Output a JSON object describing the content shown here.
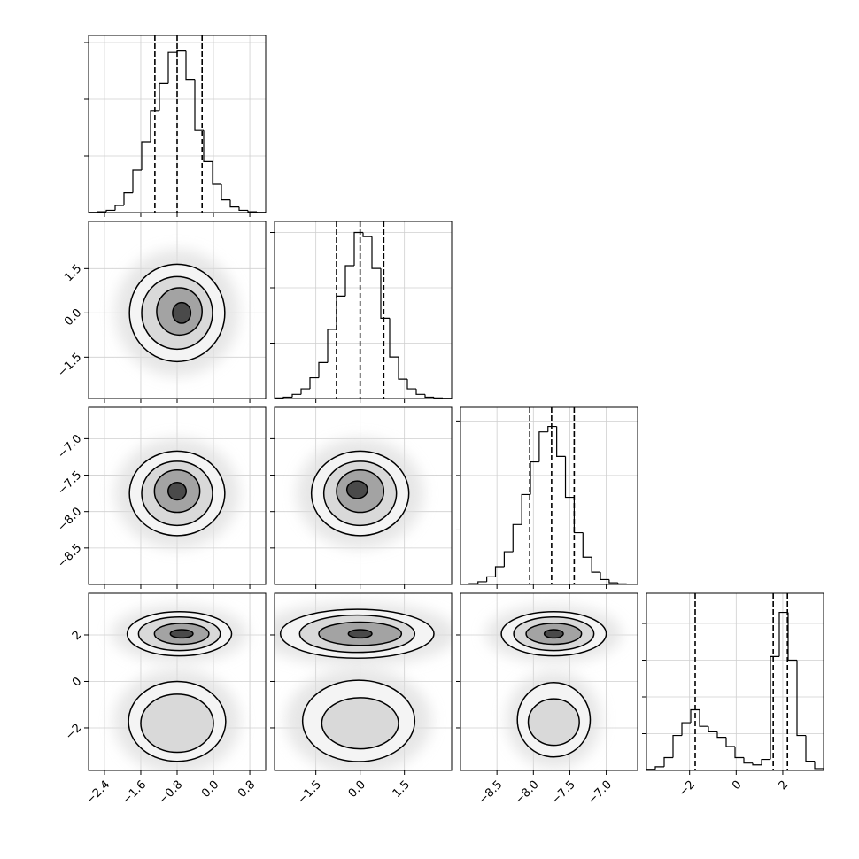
{
  "chart_data": [
    {
      "type": "histogram",
      "bins": [
        -2.75,
        -2.555,
        -2.36,
        -2.165,
        -1.97,
        -1.775,
        -1.58,
        -1.385,
        -1.19,
        -0.995,
        -0.8,
        -0.605,
        -0.41,
        -0.215,
        -0.02,
        0.175,
        0.37,
        0.565,
        0.76,
        0.955,
        1.15
      ],
      "values": [
        1,
        3,
        8,
        25,
        70,
        150,
        250,
        360,
        455,
        565,
        570,
        470,
        290,
        180,
        100,
        45,
        20,
        8,
        3,
        1
      ],
      "quantiles": [
        -1.29,
        -0.8,
        -0.25
      ],
      "color": "#000000",
      "xlim": [
        -2.75,
        1.15
      ],
      "xticks": [
        {
          "value": -2.4,
          "label": "−2.4"
        },
        {
          "value": -1.6,
          "label": "−1.6"
        },
        {
          "value": -0.8,
          "label": "−0.8"
        },
        {
          "value": 0,
          "label": "0.0"
        },
        0.8
      ],
      "ylim": [
        0,
        625
      ],
      "yticks": [
        200,
        400,
        600
      ],
      "grid": true
    },
    {
      "type": "hist2d",
      "xlim": [
        -2.75,
        1.15
      ],
      "ylim": [
        -2.9,
        3.1
      ],
      "xticks": [
        {
          "value": -2.4,
          "label": "−2.4"
        },
        {
          "value": -1.6,
          "label": "−1.6"
        },
        {
          "value": -0.8,
          "label": "−0.8"
        },
        {
          "value": 0,
          "label": "0.0"
        },
        0.8
      ],
      "yticks": [
        {
          "value": -1.5,
          "label": "−1.5"
        },
        {
          "value": 0,
          "label": "0.0"
        },
        1.5
      ],
      "ylabels": true,
      "grid": true,
      "fill_colors": [
        "#f4f4f4",
        "#d9d9d9",
        "#a3a3a3",
        "#4a4a4a"
      ],
      "line_color": "#000000",
      "contours": [
        [
          {
            "cx": -0.8,
            "cy": 0,
            "rx": 1.05,
            "ry": 1.65
          },
          {
            "cx": -0.8,
            "cy": 0,
            "rx": 0.78,
            "ry": 1.23
          },
          {
            "cx": -0.75,
            "cy": 0.05,
            "rx": 0.5,
            "ry": 0.8
          },
          {
            "cx": -0.7,
            "cy": 0,
            "rx": 0.2,
            "ry": 0.35
          }
        ]
      ]
    },
    {
      "type": "histogram",
      "bins": [
        -2.9,
        -2.6,
        -2.3,
        -2.0,
        -1.7,
        -1.4,
        -1.1,
        -0.8,
        -0.5,
        -0.2,
        0.1,
        0.4,
        0.7,
        1.0,
        1.3,
        1.6,
        1.9,
        2.2,
        2.5,
        2.8,
        3.1
      ],
      "values": [
        2,
        5,
        15,
        35,
        75,
        130,
        250,
        370,
        480,
        600,
        585,
        470,
        290,
        150,
        70,
        35,
        15,
        5,
        2,
        1
      ],
      "quantiles": [
        -0.8,
        0.0,
        0.8
      ],
      "color": "#000000",
      "xlim": [
        -2.9,
        3.1
      ],
      "xticks": [
        {
          "value": -1.5,
          "label": "−1.5"
        },
        {
          "value": 0,
          "label": "0.0"
        },
        1.5
      ],
      "ylim": [
        0,
        640
      ],
      "yticks": [
        200,
        400,
        600
      ],
      "grid": true
    },
    {
      "type": "hist2d",
      "xlim": [
        -2.75,
        1.15
      ],
      "ylim": [
        -9.0,
        -6.57
      ],
      "xticks": [
        {
          "value": -2.4,
          "label": "−2.4"
        },
        {
          "value": -1.6,
          "label": "−1.6"
        },
        {
          "value": -0.8,
          "label": "−0.8"
        },
        {
          "value": 0,
          "label": "0.0"
        },
        0.8
      ],
      "yticks": [
        {
          "value": -8.5,
          "label": "−8.5"
        },
        {
          "value": -8,
          "label": "−8.0"
        },
        {
          "value": -7.5,
          "label": "−7.5"
        },
        {
          "value": -7,
          "label": "−7.0"
        }
      ],
      "ylabels": true,
      "grid": true,
      "fill_colors": [
        "#f4f4f4",
        "#d9d9d9",
        "#a3a3a3",
        "#4a4a4a"
      ],
      "line_color": "#000000",
      "contours": [
        [
          {
            "cx": -0.8,
            "cy": -7.75,
            "rx": 1.05,
            "ry": 0.58
          },
          {
            "cx": -0.8,
            "cy": -7.75,
            "rx": 0.78,
            "ry": 0.44
          },
          {
            "cx": -0.8,
            "cy": -7.72,
            "rx": 0.5,
            "ry": 0.29
          },
          {
            "cx": -0.8,
            "cy": -7.72,
            "rx": 0.2,
            "ry": 0.12
          }
        ]
      ]
    },
    {
      "type": "hist2d",
      "xlim": [
        -2.9,
        3.1
      ],
      "ylim": [
        -9.0,
        -6.57
      ],
      "xticks": [
        {
          "value": -1.5,
          "label": "−1.5"
        },
        {
          "value": 0,
          "label": "0.0"
        },
        1.5
      ],
      "yticks": [
        {
          "value": -8.5,
          "label": "−8.5"
        },
        {
          "value": -8,
          "label": "−8.0"
        },
        {
          "value": -7.5,
          "label": "−7.5"
        },
        {
          "value": -7,
          "label": "−7.0"
        }
      ],
      "grid": true,
      "fill_colors": [
        "#f4f4f4",
        "#d9d9d9",
        "#a3a3a3",
        "#4a4a4a"
      ],
      "line_color": "#000000",
      "contours": [
        [
          {
            "cx": 0,
            "cy": -7.75,
            "rx": 1.65,
            "ry": 0.58
          },
          {
            "cx": 0,
            "cy": -7.75,
            "rx": 1.23,
            "ry": 0.44
          },
          {
            "cx": 0,
            "cy": -7.72,
            "rx": 0.8,
            "ry": 0.29
          },
          {
            "cx": -0.1,
            "cy": -7.7,
            "rx": 0.35,
            "ry": 0.12
          }
        ]
      ]
    },
    {
      "type": "histogram",
      "bins": [
        -9.0,
        -8.88,
        -8.76,
        -8.64,
        -8.52,
        -8.4,
        -8.28,
        -8.16,
        -8.04,
        -7.92,
        -7.8,
        -7.68,
        -7.56,
        -7.44,
        -7.32,
        -7.2,
        -7.08,
        -6.96,
        -6.84,
        -6.72,
        -6.6
      ],
      "values": [
        1,
        3,
        10,
        28,
        65,
        120,
        220,
        330,
        450,
        560,
        580,
        470,
        320,
        190,
        100,
        45,
        18,
        6,
        2,
        1
      ],
      "quantiles": [
        -8.05,
        -7.75,
        -7.44
      ],
      "color": "#000000",
      "xlim": [
        -9.0,
        -6.57
      ],
      "xticks": [
        {
          "value": -8.5,
          "label": "−8.5"
        },
        {
          "value": -8,
          "label": "−8.0"
        },
        {
          "value": -7.5,
          "label": "−7.5"
        },
        {
          "value": -7,
          "label": "−7.0"
        }
      ],
      "ylim": [
        0,
        650
      ],
      "yticks": [
        200,
        400,
        600
      ],
      "grid": true
    },
    {
      "type": "hist2d",
      "xlim": [
        -2.75,
        1.15
      ],
      "ylim": [
        -3.83,
        3.79
      ],
      "xticks": [
        {
          "value": -2.4,
          "label": "−2.4"
        },
        {
          "value": -1.6,
          "label": "−1.6"
        },
        {
          "value": -0.8,
          "label": "−0.8"
        },
        {
          "value": 0,
          "label": "0.0"
        },
        0.8
      ],
      "xlabels": true,
      "yticks": [
        {
          "value": -2,
          "label": "−2"
        },
        0,
        2
      ],
      "ylabels": true,
      "grid": true,
      "fill_colors": [
        "#f4f4f4",
        "#d9d9d9",
        "#a3a3a3",
        "#4a4a4a"
      ],
      "line_color": "#000000",
      "contours": [
        [
          {
            "cx": -0.75,
            "cy": 2.05,
            "rx": 1.15,
            "ry": 0.95
          },
          {
            "cx": -0.75,
            "cy": 2.05,
            "rx": 0.9,
            "ry": 0.72
          },
          {
            "cx": -0.7,
            "cy": 2.05,
            "rx": 0.6,
            "ry": 0.45
          },
          {
            "cx": -0.7,
            "cy": 2.05,
            "rx": 0.25,
            "ry": 0.18
          }
        ],
        [
          {
            "cx": -0.8,
            "cy": -1.72,
            "rx": 1.07,
            "ry": 1.72
          },
          {
            "cx": -0.8,
            "cy": -1.8,
            "rx": 0.8,
            "ry": 1.25
          }
        ]
      ]
    },
    {
      "type": "hist2d",
      "xlim": [
        -2.9,
        3.1
      ],
      "ylim": [
        -3.83,
        3.79
      ],
      "xticks": [
        {
          "value": -1.5,
          "label": "−1.5"
        },
        {
          "value": 0,
          "label": "0.0"
        },
        1.5
      ],
      "xlabels": true,
      "yticks": [
        {
          "value": -2,
          "label": "−2"
        },
        0,
        2
      ],
      "grid": true,
      "fill_colors": [
        "#f4f4f4",
        "#d9d9d9",
        "#a3a3a3",
        "#4a4a4a"
      ],
      "line_color": "#000000",
      "contours": [
        [
          {
            "cx": -0.1,
            "cy": 2.05,
            "rx": 2.6,
            "ry": 1.05
          },
          {
            "cx": -0.1,
            "cy": 2.05,
            "rx": 1.95,
            "ry": 0.8
          },
          {
            "cx": 0,
            "cy": 2.05,
            "rx": 1.4,
            "ry": 0.5
          },
          {
            "cx": 0,
            "cy": 2.05,
            "rx": 0.4,
            "ry": 0.18
          }
        ],
        [
          {
            "cx": -0.05,
            "cy": -1.7,
            "rx": 1.9,
            "ry": 1.75
          },
          {
            "cx": 0,
            "cy": -1.8,
            "rx": 1.3,
            "ry": 1.1
          }
        ]
      ]
    },
    {
      "type": "hist2d",
      "xlim": [
        -9.0,
        -6.57
      ],
      "ylim": [
        -3.83,
        3.79
      ],
      "xticks": [
        {
          "value": -8.5,
          "label": "−8.5"
        },
        {
          "value": -8,
          "label": "−8.0"
        },
        {
          "value": -7.5,
          "label": "−7.5"
        },
        {
          "value": -7,
          "label": "−7.0"
        }
      ],
      "xlabels": true,
      "yticks": [
        {
          "value": -2,
          "label": "−2"
        },
        0,
        2
      ],
      "grid": true,
      "fill_colors": [
        "#f4f4f4",
        "#d9d9d9",
        "#a3a3a3",
        "#4a4a4a"
      ],
      "line_color": "#000000",
      "contours": [
        [
          {
            "cx": -7.72,
            "cy": 2.05,
            "rx": 0.72,
            "ry": 0.95
          },
          {
            "cx": -7.72,
            "cy": 2.05,
            "rx": 0.55,
            "ry": 0.72
          },
          {
            "cx": -7.72,
            "cy": 2.05,
            "rx": 0.38,
            "ry": 0.45
          },
          {
            "cx": -7.72,
            "cy": 2.05,
            "rx": 0.13,
            "ry": 0.18
          }
        ],
        [
          {
            "cx": -7.72,
            "cy": -1.65,
            "rx": 0.5,
            "ry": 1.6
          },
          {
            "cx": -7.72,
            "cy": -1.75,
            "rx": 0.35,
            "ry": 1.0
          }
        ]
      ]
    },
    {
      "type": "histogram",
      "bins": [
        -3.85,
        -3.47,
        -3.09,
        -2.71,
        -2.33,
        -1.95,
        -1.57,
        -1.19,
        -0.81,
        -0.43,
        -0.05,
        0.33,
        0.71,
        1.09,
        1.47,
        1.85,
        2.23,
        2.61,
        2.99,
        3.37,
        3.75
      ],
      "values": [
        3,
        10,
        35,
        95,
        130,
        165,
        120,
        105,
        90,
        65,
        35,
        20,
        15,
        30,
        310,
        430,
        300,
        95,
        25,
        5
      ],
      "quantiles": [
        -1.76,
        1.59,
        2.2
      ],
      "color": "#000000",
      "xlim": [
        -3.85,
        3.75
      ],
      "xticks": [
        {
          "value": -2,
          "label": "−2"
        },
        0,
        2
      ],
      "xlabels": true,
      "ylim": [
        0,
        482
      ],
      "yticks": [
        100,
        200,
        300,
        400
      ],
      "grid": true
    }
  ]
}
